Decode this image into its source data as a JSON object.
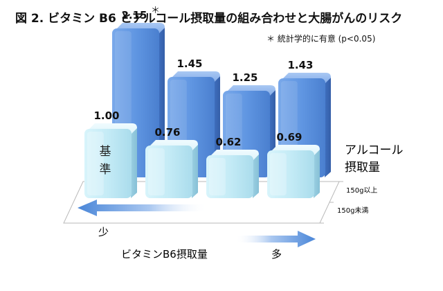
{
  "chart_data": {
    "type": "bar",
    "title": "図 2. ビタミン B6 とアルコール摂取量の組み合わせと大腸がんのリスク",
    "note": "＊ 統計学的に有意 (p<0.05)",
    "categories": [
      "少",
      "",
      "",
      "多"
    ],
    "series": [
      {
        "name": "150g以上",
        "values": [
          2.15,
          1.45,
          1.25,
          1.43
        ],
        "value_labels": [
          "2.15",
          "1.45",
          "1.25",
          "1.43"
        ],
        "significant": [
          true,
          false,
          false,
          false
        ]
      },
      {
        "name": "150g未満",
        "values": [
          1.0,
          0.76,
          0.62,
          0.69
        ],
        "value_labels": [
          "1.00",
          "0.76",
          "0.62",
          "0.69"
        ],
        "significant": [
          false,
          false,
          false,
          false
        ]
      }
    ],
    "significance_mark": "＊",
    "baseline_label": "基準",
    "xlabel": "ビタミンB6摂取量",
    "xlabel_low": "少",
    "xlabel_high": "多",
    "depth_axis_label_line1": "アルコール",
    "depth_axis_label_line2": "摂取量",
    "colors": {
      "high_series": "#5b8fd8",
      "low_series": "#c9ecf7",
      "arrow": "#4a86d8"
    }
  }
}
